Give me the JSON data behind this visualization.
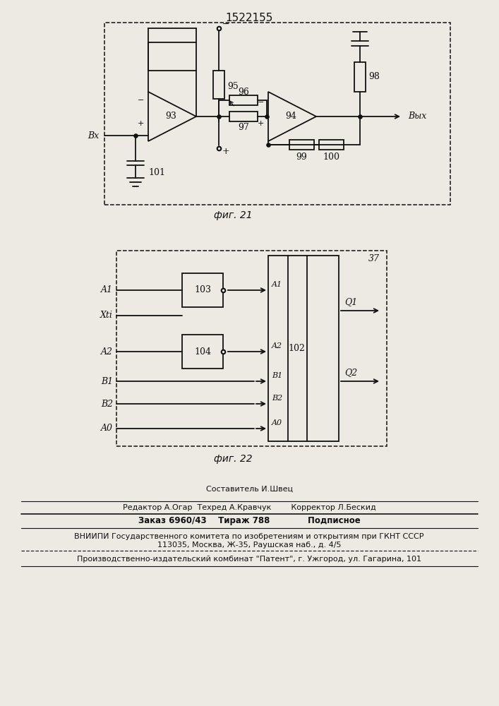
{
  "title": "1522155",
  "bg_color": "#ede9e3",
  "line_color": "#111111",
  "fig21_caption": "фиг. 21",
  "fig22_caption": "фиг. 22",
  "footer_sestavitel": "Составитель И.Швец",
  "footer_editor": "Редактор А.Огар  Техред А.Кравчук        Корректор Л.Бескид",
  "footer_zakaz": "Заказ 6960/43    Тираж 788             Подписное",
  "footer_vniip1": "ВНИИПИ Государственного комитета по изобретениям и открытиям при ГКНТ СССР",
  "footer_vniip2": "113035, Москва, Ж-35, Раушская наб., д. 4/5",
  "footer_patent": "Производственно-издательский комбинат \"Патент\", г. Ужгород, ул. Гагарина, 101",
  "vx_label": "Вх",
  "vyx_label": "Вых"
}
